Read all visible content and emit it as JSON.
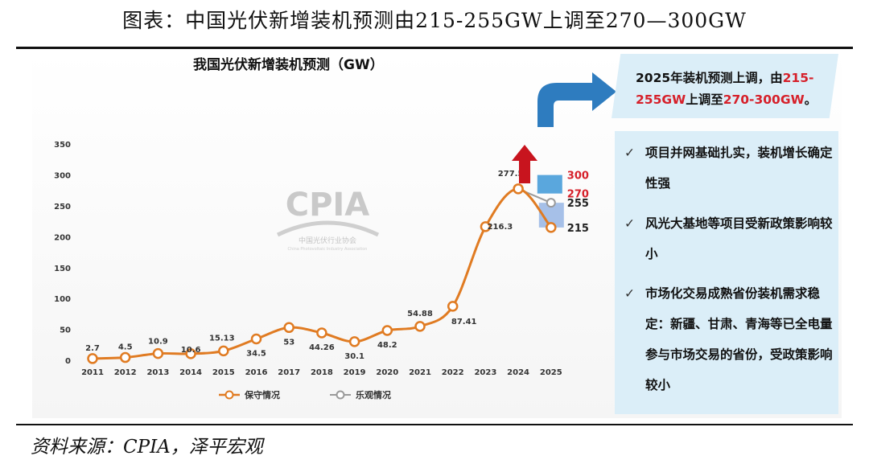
{
  "figure": {
    "title": "图表：中国光伏新增装机预测由215-255GW上调至270—300GW",
    "source": "资料来源：CPIA，泽平宏观"
  },
  "colors": {
    "base_line": "#e07b22",
    "base_point_fill": "#ffffff",
    "optimistic_line": "#9a9a9a",
    "arrow_blue": "#2e7cbf",
    "arrow_red": "#c8141e",
    "box_2025_high": "#5aa7dd",
    "box_2025_low": "#a6c0e8",
    "highlight_red": "#d6202a",
    "panel_bg": "#dbeef8"
  },
  "chart_data": {
    "type": "line",
    "title": "我国光伏新增装机预测（GW）",
    "x": [
      "2011",
      "2012",
      "2013",
      "2014",
      "2015",
      "2016",
      "2017",
      "2018",
      "2019",
      "2020",
      "2021",
      "2022",
      "2023",
      "2024",
      "2025"
    ],
    "ylim": [
      0,
      350
    ],
    "yticks": [
      0,
      50,
      100,
      150,
      200,
      250,
      300,
      350
    ],
    "grid": false,
    "legend_position": "bottom",
    "series": [
      {
        "name": "保守情况",
        "values": [
          2.7,
          4.5,
          10.9,
          10.6,
          15.13,
          34.5,
          53,
          44.26,
          30.1,
          48.2,
          54.88,
          87.41,
          216.3,
          277.57,
          215
        ],
        "labels": [
          "2.7",
          "4.5",
          "10.9",
          "10.6",
          "15.13",
          "34.5",
          "53",
          "44.26",
          "30.1",
          "48.2",
          "54.88",
          "87.41",
          "216.3",
          "277.57",
          ""
        ]
      },
      {
        "name": "乐观情况",
        "values": [
          null,
          null,
          null,
          null,
          null,
          null,
          null,
          null,
          null,
          null,
          null,
          null,
          null,
          277.57,
          255
        ]
      }
    ],
    "annotations_2025": {
      "old_range": [
        "215",
        "255"
      ],
      "new_range": [
        "270",
        "300"
      ]
    },
    "watermark": {
      "main": "CPIA",
      "sub": "中国光伏行业协会",
      "sub_en": "China Photovoltaic Industry Association"
    }
  },
  "callout": {
    "prefix": "2025年装机预测上调，由",
    "old_range": "215-255GW",
    "middle": "上调至",
    "new_range": "270-300GW",
    "suffix": "。"
  },
  "bullets": [
    {
      "check": "✓",
      "text": "项目并网基础扎实，装机增长确定性强"
    },
    {
      "check": "✓",
      "text": "风光大基地等项目受新政策影响较小"
    },
    {
      "check": "✓",
      "text": "市场化交易成熟省份装机需求稳定：新疆、甘肃、青海等已全电量参与市场交易的省份，受政策影响较小"
    }
  ]
}
